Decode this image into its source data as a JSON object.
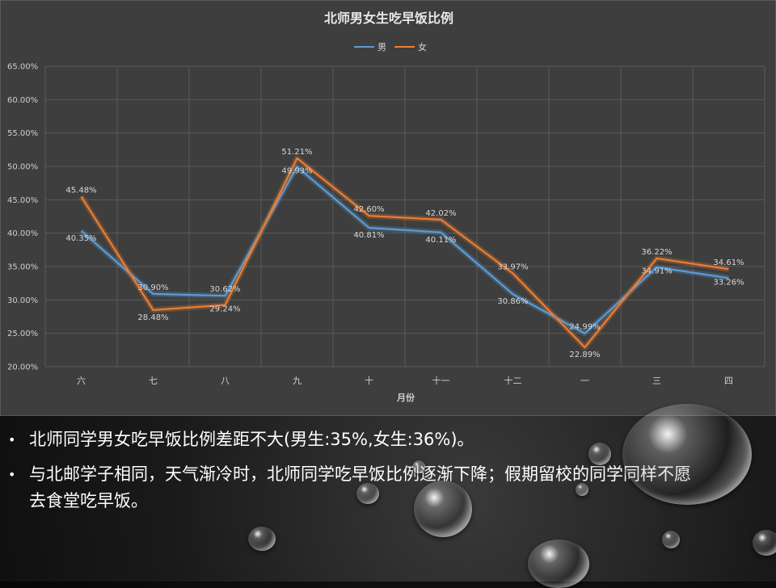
{
  "colors": {
    "male": "#5b9bd5",
    "female": "#ed7d31",
    "panel_bg": "#3e3e3e",
    "grid": "#595959"
  },
  "chart_data": {
    "type": "line",
    "title": "北师男女生吃早饭比例",
    "xlabel": "月份",
    "ylabel": "",
    "categories": [
      "六",
      "七",
      "八",
      "九",
      "十",
      "十一",
      "十二",
      "一",
      "三",
      "四"
    ],
    "ylim": [
      0.2,
      0.65
    ],
    "yticks": [
      "65.00%",
      "60.00%",
      "55.00%",
      "50.00%",
      "45.00%",
      "40.00%",
      "35.00%",
      "30.00%",
      "25.00%",
      "20.00%"
    ],
    "grid": true,
    "legend_position": "top-center",
    "series": [
      {
        "name": "男",
        "values": [
          0.4035,
          0.309,
          0.3062,
          0.4993,
          0.4081,
          0.4011,
          0.3086,
          0.2499,
          0.3491,
          0.3326
        ],
        "labels": [
          "40.35%",
          "30.90%",
          "30.62%",
          "49.93%",
          "40.81%",
          "40.11%",
          "30.86%",
          "24.99%",
          "34.91%",
          "33.26%"
        ]
      },
      {
        "name": "女",
        "values": [
          0.4548,
          0.2848,
          0.2924,
          0.5121,
          0.426,
          0.4202,
          0.3397,
          0.2289,
          0.3622,
          0.3461
        ],
        "labels": [
          "45.48%",
          "28.48%",
          "29.24%",
          "51.21%",
          "42.60%",
          "42.02%",
          "33.97%",
          "22.89%",
          "36.22%",
          "34.61%"
        ]
      }
    ]
  },
  "bullets": [
    "北师同学男女吃早饭比例差距不大(男生:35%,女生:36%)。",
    "与北邮学子相同，天气渐冷时，北师同学吃早饭比例逐渐下降；假期留校的同学同样不愿去食堂吃早饭。"
  ],
  "bullet_symbol": "•"
}
